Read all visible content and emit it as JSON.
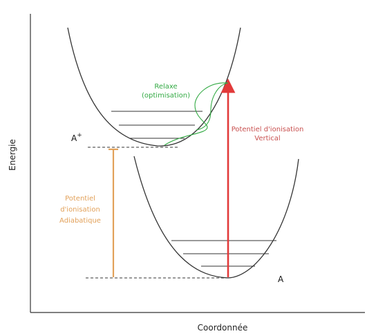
{
  "axes": {
    "y_label": "Energie",
    "x_label": "Coordonnée"
  },
  "states": {
    "ion": {
      "base": "A",
      "superscript": "+"
    },
    "neutral": {
      "label": "A"
    }
  },
  "annotations": {
    "relax": [
      "Relaxe",
      "(optimisation)"
    ],
    "vertical": [
      "Potentiel d'ionisation",
      "Vertical"
    ],
    "adiabatic": [
      "Potentiel",
      "d'ionisation",
      "Adiabatique"
    ]
  },
  "colors": {
    "axis": "#333333",
    "curve": "#333333",
    "relax": "#33aa44",
    "vertical": "#c8504f",
    "vertical_arrow": "#e23a3a",
    "adiabatic": "#e2a15a"
  }
}
